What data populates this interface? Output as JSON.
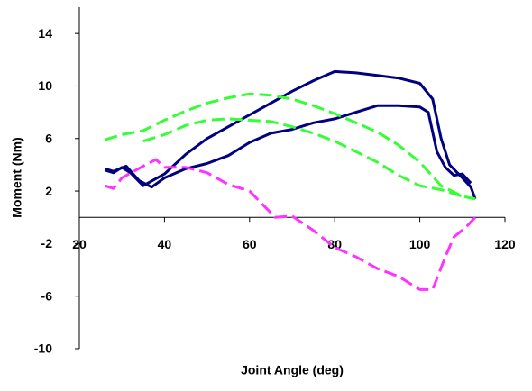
{
  "chart_data": {
    "type": "line",
    "xlabel": "Joint Angle (deg)",
    "ylabel": "Moment (Nm)",
    "xlim": [
      20,
      120
    ],
    "xticks": [
      20,
      40,
      60,
      80,
      100,
      120
    ],
    "ylim": [
      -10,
      16
    ],
    "yticks": [
      -10,
      -6,
      -2,
      2,
      6,
      10,
      14
    ],
    "grid": false,
    "series": [
      {
        "color": "#000080",
        "line_style": "solid",
        "x": [
          26,
          28,
          30,
          32,
          35,
          40,
          45,
          50,
          55,
          60,
          65,
          70,
          75,
          80,
          85,
          90,
          95,
          100,
          103,
          105,
          107,
          110,
          112,
          113
        ],
        "values": [
          3.6,
          3.4,
          3.8,
          3.4,
          2.4,
          3.3,
          4.8,
          6,
          6.9,
          7.8,
          8.7,
          9.6,
          10.4,
          11.1,
          11,
          10.8,
          10.6,
          10.2,
          9,
          6,
          4,
          3,
          2.3,
          1.4
        ]
      },
      {
        "color": "#000080",
        "line_style": "solid",
        "x": [
          26,
          28,
          31,
          34,
          37,
          40,
          45,
          50,
          55,
          60,
          65,
          70,
          75,
          80,
          85,
          90,
          95,
          100,
          102,
          104,
          106,
          108,
          110,
          112
        ],
        "values": [
          3.7,
          3.5,
          3.9,
          2.8,
          2.3,
          3,
          3.7,
          4.1,
          4.7,
          5.7,
          6.4,
          6.7,
          7.2,
          7.5,
          8,
          8.5,
          8.5,
          8.4,
          8,
          5,
          3.8,
          3.2,
          3.3,
          2.6
        ]
      },
      {
        "color": "#33ff33",
        "line_style": "dashed",
        "x": [
          26,
          30,
          35,
          40,
          45,
          50,
          55,
          60,
          65,
          70,
          75,
          80,
          85,
          90,
          95,
          100,
          105,
          110,
          113
        ],
        "values": [
          5.9,
          6.3,
          6.6,
          7.4,
          8.1,
          8.7,
          9.1,
          9.4,
          9.3,
          9,
          8.5,
          7.9,
          7.2,
          6.5,
          5.5,
          4.2,
          2.4,
          1.6,
          1.4
        ]
      },
      {
        "color": "#33ff33",
        "line_style": "dashed",
        "x": [
          35,
          40,
          45,
          50,
          55,
          60,
          65,
          70,
          75,
          80,
          85,
          90,
          95,
          100,
          105,
          110,
          113
        ],
        "values": [
          5.8,
          6.3,
          7,
          7.4,
          7.5,
          7.4,
          7.3,
          6.9,
          6.4,
          5.8,
          5,
          4.2,
          3.2,
          2.4,
          2.1,
          1.6,
          1.4
        ]
      },
      {
        "color": "#ff33ff",
        "line_style": "dashed",
        "x": [
          26,
          28,
          30,
          35,
          38,
          40,
          45,
          50,
          55,
          60,
          63,
          66,
          70,
          75,
          80,
          85,
          90,
          95,
          100,
          103,
          106,
          108,
          111,
          113
        ],
        "values": [
          2.4,
          2.2,
          3,
          3.9,
          4.4,
          3.8,
          3.8,
          3.4,
          2.5,
          2,
          1,
          0,
          0.1,
          -1,
          -2.3,
          -3,
          -3.9,
          -4.5,
          -5.5,
          -5.5,
          -3,
          -1.5,
          -0.7,
          0
        ]
      }
    ]
  }
}
